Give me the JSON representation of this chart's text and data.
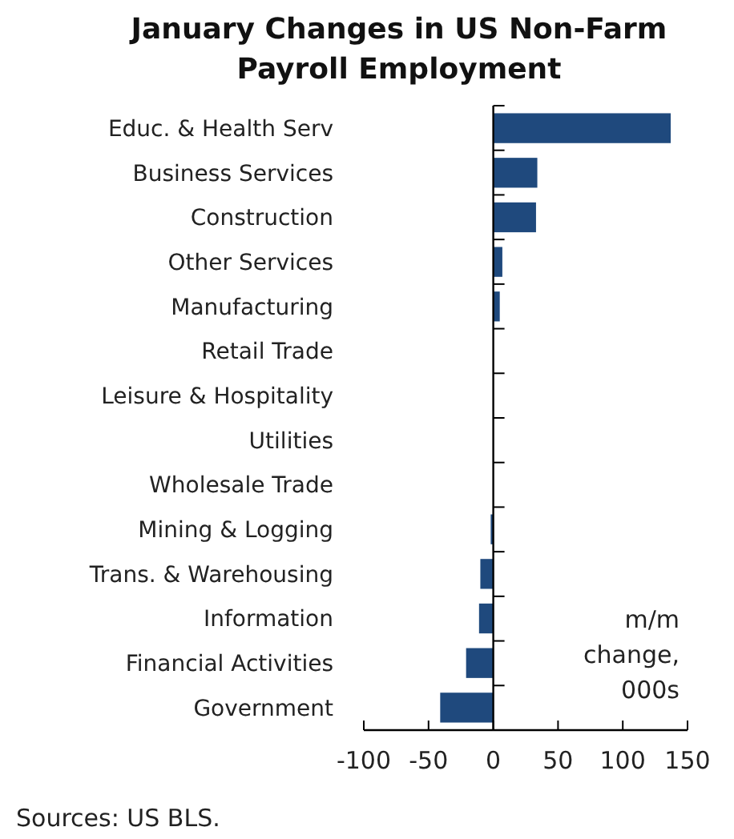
{
  "chart_data": {
    "type": "bar",
    "orientation": "horizontal",
    "title": "January Changes in US Non-Farm Payroll Employment",
    "categories": [
      "Educ. & Health Serv",
      "Business Services",
      "Construction",
      "Other Services",
      "Manufacturing",
      "Retail Trade",
      "Leisure & Hospitality",
      "Utilities",
      "Wholesale Trade",
      "Mining & Logging",
      "Trans. & Warehousing",
      "Information",
      "Financial Activities",
      "Government"
    ],
    "values": [
      137,
      34,
      33,
      7,
      5,
      0,
      0,
      0,
      0,
      -2,
      -10,
      -11,
      -21,
      -41
    ],
    "color": "#1f497d",
    "xlim": [
      -100,
      150
    ],
    "xticks": [
      -100,
      -50,
      0,
      50,
      100,
      150
    ],
    "annotations": [
      "m/m change, 000s",
      "Sources: US BLS."
    ]
  }
}
